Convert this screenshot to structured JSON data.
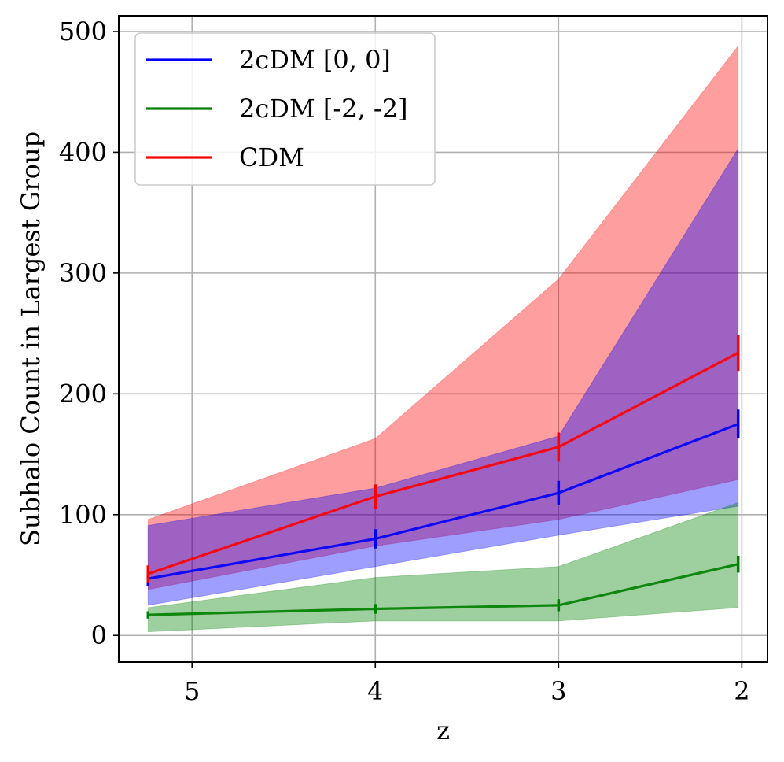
{
  "chart_data": {
    "type": "line",
    "title": "",
    "xlabel": "z",
    "ylabel": "Subhalo Count in Largest Group",
    "xlim": [
      5.4,
      1.86
    ],
    "ylim": [
      -22,
      513
    ],
    "x_ticks": [
      5,
      4,
      3,
      2
    ],
    "x_tick_labels": [
      "5",
      "4",
      "3",
      "2"
    ],
    "y_ticks": [
      0,
      100,
      200,
      300,
      400,
      500
    ],
    "y_tick_labels": [
      "0",
      "100",
      "200",
      "300",
      "400",
      "500"
    ],
    "grid": true,
    "legend_position": "top-left",
    "x": [
      5.24,
      4.0,
      3.0,
      2.02
    ],
    "series": [
      {
        "name": "2cDM [0, 0]",
        "color": "#0000ff",
        "band_color": "#0000ff",
        "values": [
          47,
          80,
          118,
          175
        ],
        "yerr": [
          6,
          8,
          10,
          12
        ],
        "band_low": [
          25,
          57,
          83,
          107
        ],
        "band_high": [
          91,
          122,
          165,
          403
        ]
      },
      {
        "name": "2cDM [-2, -2]",
        "color": "#008000",
        "band_color": "#008000",
        "values": [
          17,
          22,
          25,
          59
        ],
        "yerr": [
          3,
          4,
          5,
          7
        ],
        "band_low": [
          3,
          12,
          12,
          23
        ],
        "band_high": [
          23,
          48,
          57,
          110
        ]
      },
      {
        "name": "CDM",
        "color": "#ff0000",
        "band_color": "#ff0000",
        "values": [
          51,
          115,
          156,
          234
        ],
        "yerr": [
          7,
          10,
          12,
          15
        ],
        "band_low": [
          38,
          74,
          96,
          129
        ],
        "band_high": [
          96,
          163,
          295,
          488
        ]
      }
    ]
  }
}
